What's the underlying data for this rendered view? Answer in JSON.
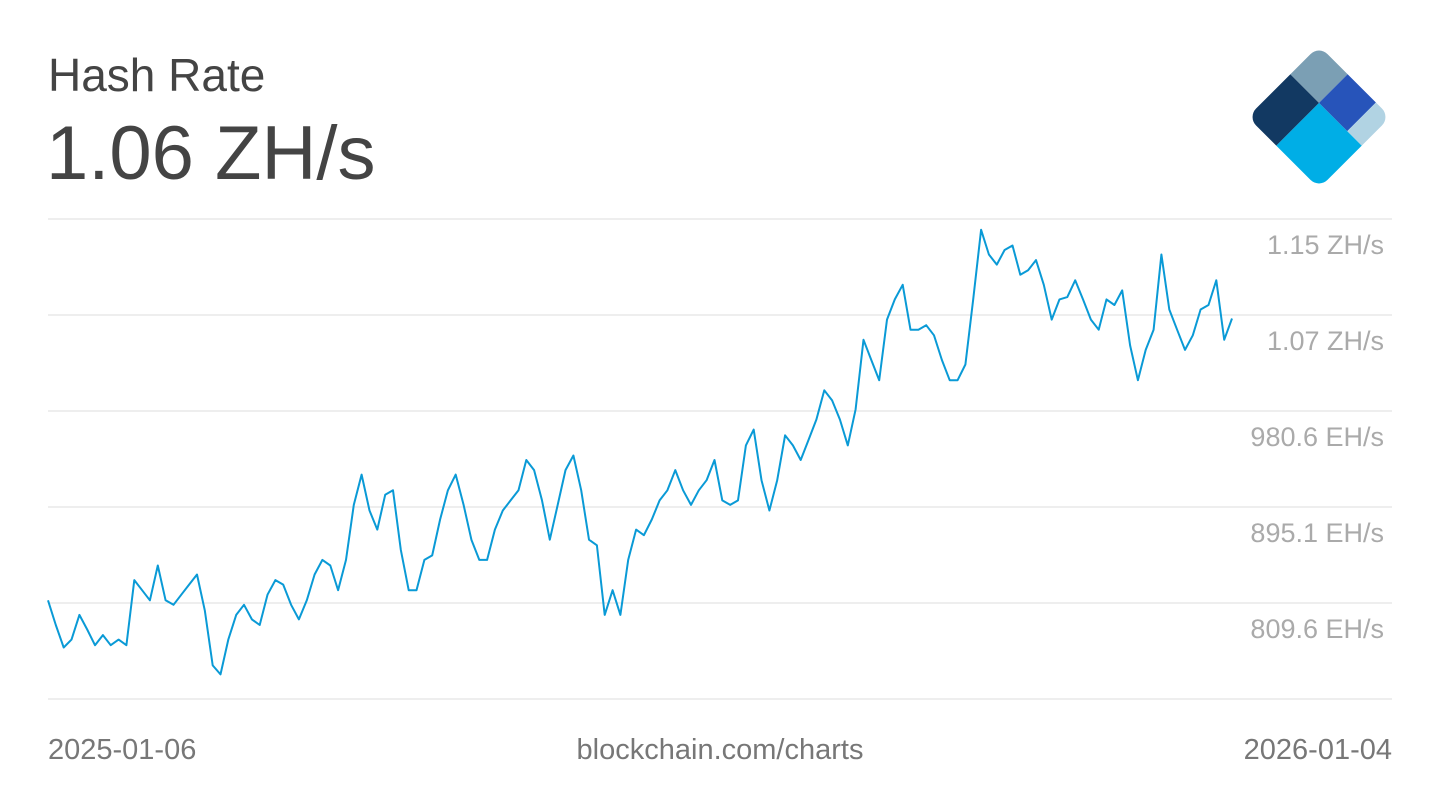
{
  "header": {
    "title": "Hash Rate",
    "current_value": "1.06 ZH/s"
  },
  "footer": {
    "start_date": "2025-01-06",
    "source": "blockchain.com/charts",
    "end_date": "2026-01-04"
  },
  "logo": {
    "name": "blockchain-logo",
    "colors": [
      "#123962",
      "#7b9fb4",
      "#2754ba",
      "#b1d3e3",
      "#00aee6"
    ]
  },
  "colors": {
    "line": "#0a9ad6",
    "grid": "#dddddd",
    "axis_text": "#aaaaaa"
  },
  "chart_data": {
    "type": "line",
    "title": "Hash Rate",
    "unit": "EH/s",
    "xlim": [
      "2025-01-06",
      "2026-01-04"
    ],
    "ylim": [
      724.1,
      1151.6
    ],
    "grid": true,
    "y_ticks": [
      {
        "value": 1151.6,
        "label": "1.15 ZH/s"
      },
      {
        "value": 1066.1,
        "label": "1.07 ZH/s"
      },
      {
        "value": 980.6,
        "label": "980.6 EH/s"
      },
      {
        "value": 895.1,
        "label": "895.1 EH/s"
      },
      {
        "value": 809.6,
        "label": "809.6 EH/s"
      }
    ],
    "values": [
      812,
      790,
      770,
      777,
      799,
      786,
      772,
      781,
      772,
      777,
      772,
      830,
      821,
      812,
      843,
      812,
      808,
      817,
      826,
      835,
      803,
      754,
      746,
      777,
      799,
      808,
      795,
      790,
      817,
      830,
      826,
      808,
      795,
      812,
      835,
      848,
      843,
      821,
      848,
      897,
      924,
      892,
      875,
      906,
      910,
      857,
      821,
      821,
      848,
      852,
      884,
      910,
      924,
      897,
      866,
      848,
      848,
      875,
      892,
      901,
      910,
      937,
      928,
      901,
      866,
      897,
      928,
      941,
      910,
      866,
      861,
      799,
      821,
      799,
      848,
      875,
      870,
      884,
      901,
      910,
      928,
      910,
      897,
      910,
      919,
      937,
      901,
      897,
      901,
      950,
      964,
      919,
      892,
      919,
      959,
      950,
      937,
      955,
      973,
      999,
      990,
      973,
      950,
      982,
      1044,
      1026,
      1008,
      1062,
      1080,
      1093,
      1053,
      1053,
      1057,
      1048,
      1026,
      1008,
      1008,
      1022,
      1080,
      1142,
      1120,
      1111,
      1124,
      1128,
      1102,
      1106,
      1115,
      1093,
      1062,
      1080,
      1082,
      1097,
      1080,
      1062,
      1053,
      1080,
      1075,
      1088,
      1039,
      1008,
      1035,
      1053,
      1120,
      1071,
      1053,
      1035,
      1048,
      1071,
      1075,
      1097,
      1044,
      1063
    ]
  }
}
